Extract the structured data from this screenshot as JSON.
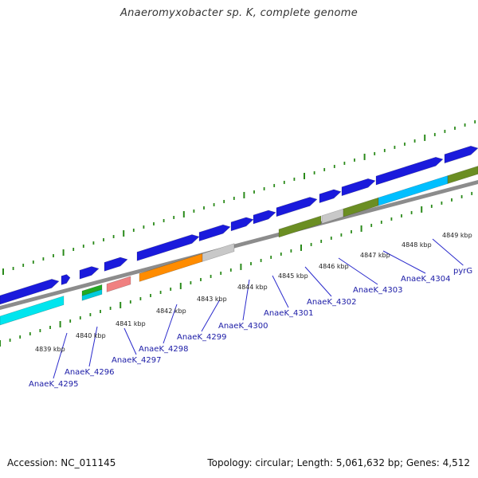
{
  "title": "Anaeromyxobacter sp. K, complete genome",
  "footer": {
    "accession": "Accession: NC_011145",
    "topology": "Topology: circular; Length: 5,061,632 bp; Genes: 4,512"
  },
  "colors": {
    "forward_cds": "#1a1adc",
    "backbone": "#8c8c8c",
    "ticks": "#2a8a1a",
    "label": "#1a1aa6"
  },
  "kbp_labels": [
    "4839 kbp",
    "4840 kbp",
    "4841 kbp",
    "4842 kbp",
    "4843 kbp",
    "4844 kbp",
    "4845 kbp",
    "4846 kbp",
    "4847 kbp",
    "4848 kbp",
    "4849 kbp"
  ],
  "gene_labels": [
    "AnaeK_4295",
    "AnaeK_4296",
    "AnaeK_4297",
    "AnaeK_4298",
    "AnaeK_4299",
    "AnaeK_4300",
    "AnaeK_4301",
    "AnaeK_4302",
    "AnaeK_4303",
    "AnaeK_4304",
    "pyrG"
  ]
}
